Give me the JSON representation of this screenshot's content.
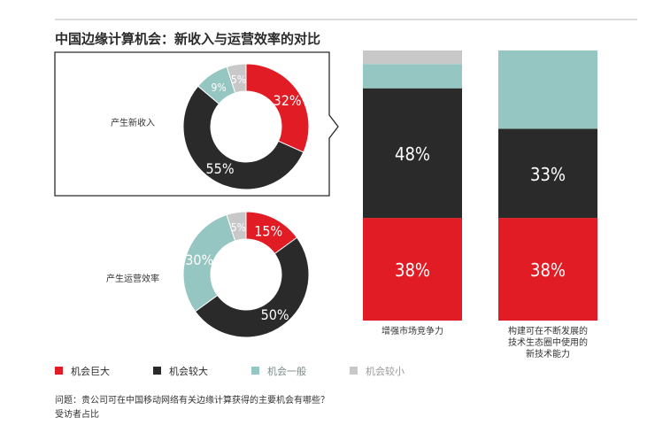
{
  "title": "中国边缘计算机会：新收入与运营效率的对比",
  "chart_data": [
    {
      "type": "pie",
      "variant": "donut",
      "label": "产生新收入",
      "categories": [
        "机会巨大",
        "机会较大",
        "机会一般",
        "机会较小"
      ],
      "values": [
        32,
        55,
        9,
        5
      ],
      "value_labels": [
        "32%",
        "55%",
        "9%",
        "5%"
      ]
    },
    {
      "type": "pie",
      "variant": "donut",
      "label": "产生运营效率",
      "categories": [
        "机会巨大",
        "机会较大",
        "机会一般",
        "机会较小"
      ],
      "values": [
        15,
        50,
        30,
        5
      ],
      "value_labels": [
        "15%",
        "50%",
        "30%",
        "5%"
      ]
    },
    {
      "type": "bar",
      "stacked": true,
      "categories": [
        "增强市场竞争力",
        "构建可在不断发展的技术生态圈中使用的新技术能力"
      ],
      "category_lines": [
        [
          "增强市场竞争力"
        ],
        [
          "构建可在不断发展的",
          "技术生态圈中使用的",
          "新技术能力"
        ]
      ],
      "series": [
        {
          "name": "机会巨大",
          "values": [
            38,
            38
          ],
          "labels": [
            "38%",
            "38%"
          ]
        },
        {
          "name": "机会较大",
          "values": [
            48,
            33
          ],
          "labels": [
            "48%",
            "33%"
          ]
        },
        {
          "name": "机会一般",
          "values": [
            9,
            29
          ],
          "labels": [
            "",
            ""
          ]
        },
        {
          "name": "机会较小",
          "values": [
            5,
            0
          ],
          "labels": [
            "",
            ""
          ]
        }
      ]
    }
  ],
  "legend": [
    {
      "label": "机会巨大",
      "color": "#e11c24"
    },
    {
      "label": "机会较大",
      "color": "#2a2a2a"
    },
    {
      "label": "机会一般",
      "color": "#96c6c1"
    },
    {
      "label": "机会较小",
      "color": "#c8c8c8"
    }
  ],
  "footnote": {
    "question": "问题：贵公司可在中国移动网络有关边缘计算获得的主要机会有哪些？",
    "base": "受访者占比"
  }
}
